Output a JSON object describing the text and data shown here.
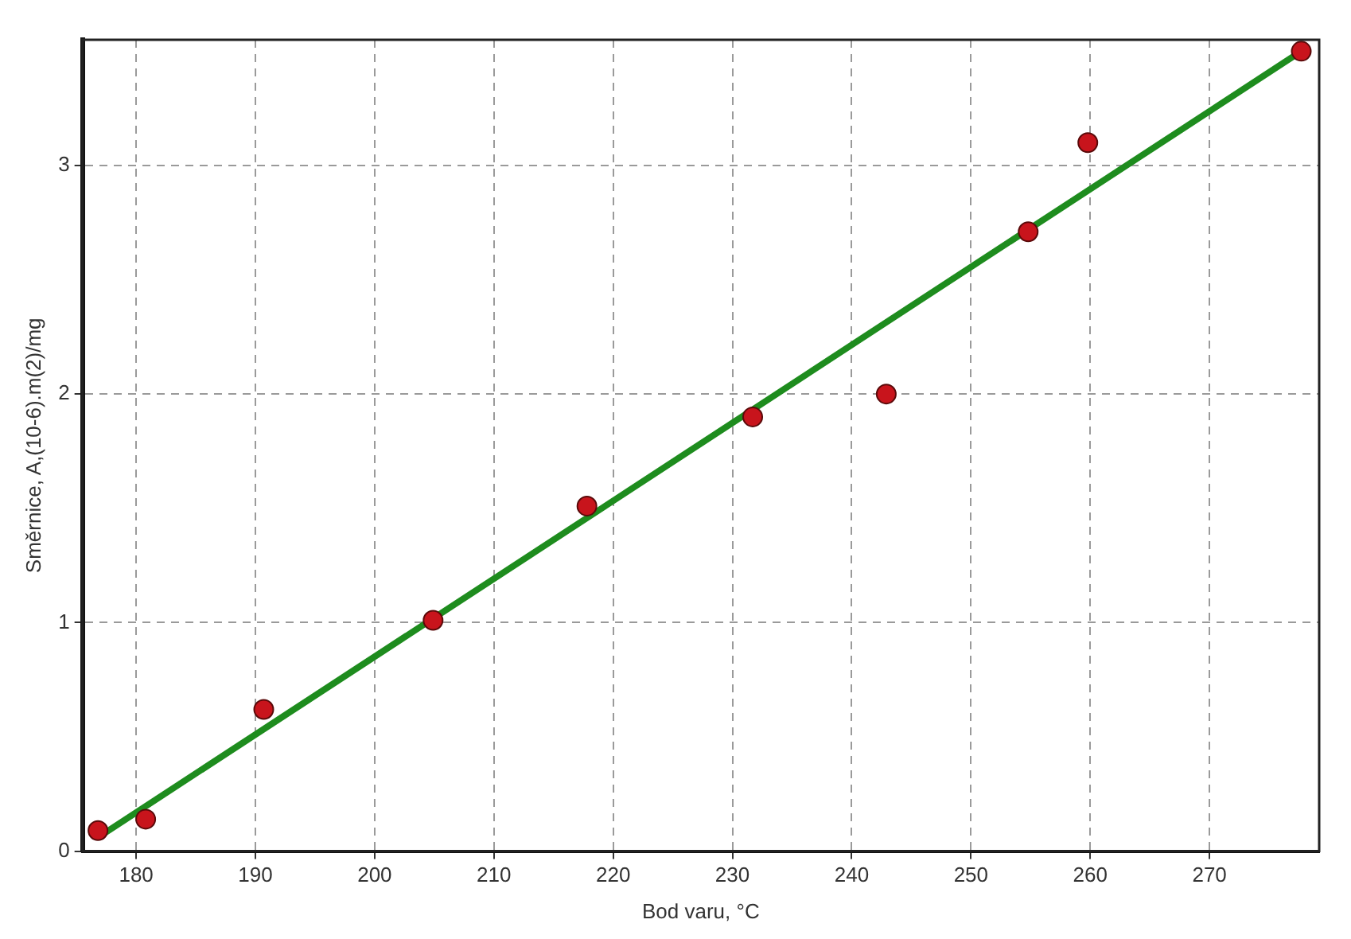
{
  "chart_data": {
    "type": "scatter",
    "xlabel": "Bod varu, °C",
    "ylabel": "Směrnice, A,(10-6).m(2)/mg",
    "xlim": [
      175.5,
      279.2
    ],
    "xticks": [
      180,
      190,
      200,
      210,
      220,
      230,
      240,
      250,
      260,
      270
    ],
    "ylim": [
      0,
      3.55
    ],
    "yticks": [
      0,
      1,
      2,
      3
    ],
    "grid": true,
    "legend": false,
    "marker": "circle",
    "series": [
      {
        "color": "#c8141c",
        "x": [
          176.8,
          180.8,
          190.7,
          204.9,
          217.8,
          231.7,
          242.9,
          254.8,
          259.8,
          277.7
        ],
        "values": [
          0.09,
          0.14,
          0.62,
          1.01,
          1.51,
          1.9,
          2.0,
          2.71,
          3.1,
          3.5
        ]
      },
      {
        "type": "line",
        "color": "#1e8c1e",
        "line_style": "solid",
        "marker": "none",
        "x": [
          176.8,
          277.7
        ],
        "values": [
          0.06,
          3.5
        ]
      }
    ]
  }
}
